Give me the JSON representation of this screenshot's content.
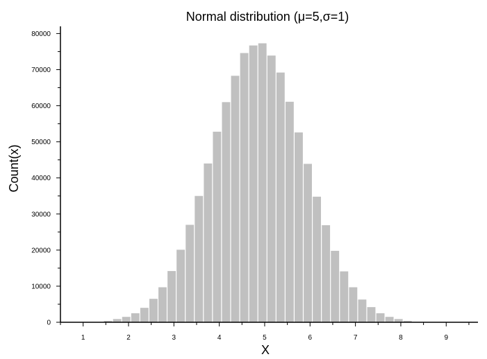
{
  "chart_data": {
    "type": "bar",
    "title": "Normal distribution (μ=5,σ=1)",
    "xlabel": "X",
    "ylabel": "Count(x)",
    "x_ticks": [
      "1",
      "2",
      "3",
      "4",
      "5",
      "6",
      "7",
      "8",
      "9"
    ],
    "y_ticks": [
      "0",
      "10000",
      "20000",
      "30000",
      "40000",
      "50000",
      "60000",
      "70000",
      "80000"
    ],
    "xlim": [
      0.5,
      9.7
    ],
    "ylim": [
      0,
      82000
    ],
    "grid": false,
    "bar_width": 0.2,
    "bar_color": "#c0c0c0",
    "x": [
      0.75,
      0.95,
      1.15,
      1.35,
      1.55,
      1.75,
      1.95,
      2.15,
      2.35,
      2.55,
      2.75,
      2.95,
      3.15,
      3.35,
      3.55,
      3.75,
      3.95,
      4.15,
      4.35,
      4.55,
      4.75,
      4.95,
      5.15,
      5.35,
      5.55,
      5.75,
      5.95,
      6.15,
      6.35,
      6.55,
      6.75,
      6.95,
      7.15,
      7.35,
      7.55,
      7.75,
      7.95,
      8.15,
      8.35,
      8.55,
      8.75,
      8.95,
      9.15,
      9.35
    ],
    "values": [
      5,
      10,
      30,
      80,
      400,
      900,
      1500,
      2500,
      4000,
      6500,
      9700,
      14200,
      20100,
      27000,
      35000,
      44000,
      52800,
      61000,
      68300,
      74600,
      76700,
      77300,
      73900,
      69200,
      61100,
      52600,
      43900,
      34800,
      26900,
      19800,
      14100,
      9700,
      6300,
      4200,
      2500,
      1500,
      900,
      400,
      120,
      40,
      10,
      5,
      2,
      1
    ]
  }
}
